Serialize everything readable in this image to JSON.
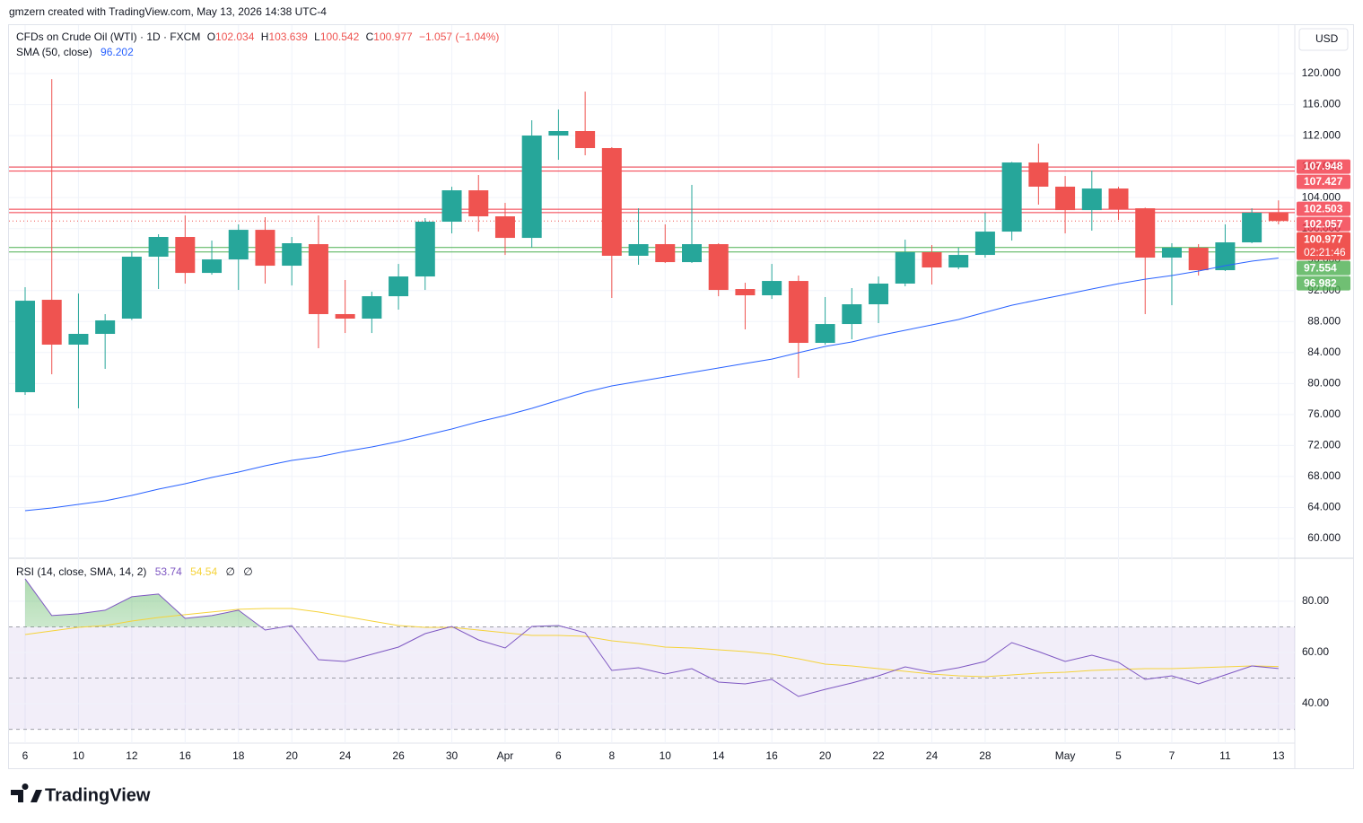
{
  "header": "gmzern created with TradingView.com, May 13, 2026 14:38 UTC-4",
  "currency": "USD",
  "brand": "TradingView",
  "chart_data": [
    {
      "type": "candlestick",
      "title": "CFDs on Crude Oil (WTI) · 1D · FXCM",
      "ohlc_labels": [
        "O",
        "H",
        "L",
        "C"
      ],
      "change_label": "−1.057 (−1.04%)",
      "categories": [
        "6",
        null,
        "10",
        null,
        "12",
        null,
        "16",
        null,
        "18",
        null,
        "20",
        null,
        "24",
        null,
        "26",
        null,
        "30",
        null,
        "Apr",
        null,
        "6",
        null,
        "8",
        null,
        "10",
        null,
        "14",
        null,
        "16",
        null,
        "20",
        null,
        "22",
        null,
        "24",
        null,
        "28",
        null,
        null,
        "May",
        null,
        "5",
        null,
        "7",
        null,
        "11",
        null,
        "13"
      ],
      "open": [
        78.88,
        90.81,
        85.02,
        86.41,
        88.38,
        96.37,
        98.92,
        94.28,
        96.02,
        99.84,
        95.21,
        97.99,
        88.96,
        88.38,
        91.27,
        93.82,
        100.89,
        104.94,
        101.58,
        98.8,
        112.01,
        112.59,
        110.39,
        96.49,
        97.99,
        95.67,
        97.99,
        92.2,
        91.39,
        93.24,
        85.25,
        87.68,
        90.23,
        92.9,
        96.95,
        94.98,
        96.6,
        99.61,
        108.53,
        105.41,
        102.39,
        105.17,
        102.62,
        96.25,
        97.53,
        94.63,
        98.22,
        102.034
      ],
      "high": [
        92.43,
        119.3,
        91.62,
        88.96,
        97.07,
        99.27,
        101.7,
        98.45,
        100.54,
        101.47,
        98.92,
        101.7,
        93.36,
        91.85,
        95.44,
        101.35,
        105.4,
        106.91,
        103.32,
        113.98,
        115.37,
        117.68,
        110.5,
        102.62,
        100.54,
        105.64,
        98.1,
        93.01,
        95.44,
        93.94,
        91.16,
        92.32,
        93.82,
        98.57,
        97.88,
        97.53,
        102.05,
        108.6,
        110.96,
        106.79,
        107.49,
        105.4,
        102.7,
        98.11,
        97.99,
        100.54,
        102.62,
        103.639
      ],
      "low": [
        78.53,
        81.2,
        76.8,
        81.89,
        88.2,
        92.2,
        92.9,
        94.05,
        92.08,
        92.9,
        92.66,
        84.56,
        86.52,
        86.52,
        89.54,
        92.08,
        99.38,
        99.61,
        96.6,
        97.53,
        108.88,
        109.46,
        91.04,
        95.33,
        95.56,
        95.56,
        91.27,
        86.99,
        90.92,
        80.73,
        85.02,
        85.71,
        87.8,
        92.55,
        92.78,
        94.75,
        96.25,
        98.45,
        103.09,
        99.38,
        99.73,
        101.12,
        88.96,
        90.11,
        93.94,
        94.52,
        98.11,
        100.542
      ],
      "close": [
        90.69,
        85.02,
        86.41,
        88.15,
        96.37,
        98.92,
        94.28,
        96.02,
        99.84,
        95.21,
        98.11,
        88.96,
        88.38,
        91.27,
        93.82,
        100.89,
        104.94,
        101.58,
        98.8,
        112.01,
        112.59,
        110.39,
        96.49,
        97.99,
        95.67,
        97.99,
        92.08,
        91.39,
        93.24,
        85.25,
        87.68,
        90.23,
        92.9,
        96.95,
        94.98,
        96.6,
        99.61,
        108.53,
        105.41,
        102.39,
        105.17,
        102.51,
        96.25,
        97.53,
        94.63,
        98.22,
        102.05,
        100.977
      ],
      "up_color": "#26a69a",
      "down_color": "#ef5350",
      "series": [
        {
          "name": "SMA (50, close)",
          "color": "#2962ff",
          "values": [
            63.59,
            63.94,
            64.4,
            64.86,
            65.56,
            66.37,
            67.06,
            67.87,
            68.57,
            69.38,
            70.08,
            70.54,
            71.23,
            71.81,
            72.51,
            73.32,
            74.13,
            75.06,
            75.87,
            76.79,
            77.84,
            78.88,
            79.69,
            80.27,
            80.85,
            81.43,
            82.01,
            82.59,
            83.16,
            83.98,
            84.79,
            85.37,
            86.18,
            86.87,
            87.57,
            88.26,
            89.19,
            90.11,
            90.81,
            91.5,
            92.2,
            92.89,
            93.47,
            93.94,
            94.52,
            95.21,
            95.79,
            96.202
          ]
        }
      ],
      "levels": [
        {
          "value": 107.948,
          "color": "#f23645"
        },
        {
          "value": 107.427,
          "color": "#f23645"
        },
        {
          "value": 102.503,
          "color": "#f23645"
        },
        {
          "value": 102.057,
          "color": "#f23645"
        },
        {
          "value": 97.554,
          "color": "#4caf50"
        },
        {
          "value": 96.982,
          "color": "#4caf50"
        }
      ],
      "last_price_countdown": "02:21:46",
      "ylim": [
        57.45,
        126.26
      ],
      "yticks": [
        {
          "value": 60,
          "label": "60.000"
        },
        {
          "value": 64,
          "label": "64.000"
        },
        {
          "value": 68,
          "label": "68.000"
        },
        {
          "value": 72,
          "label": "72.000"
        },
        {
          "value": 76,
          "label": "76.000"
        },
        {
          "value": 80,
          "label": "80.000"
        },
        {
          "value": 84,
          "label": "84.000"
        },
        {
          "value": 88,
          "label": "88.000"
        },
        {
          "value": 92,
          "label": "92.000"
        },
        {
          "value": 96,
          "label": "96.000"
        },
        {
          "value": 100,
          "label": "100.000"
        },
        {
          "value": 104,
          "label": "104.000"
        },
        {
          "value": 108,
          "label": "108.000"
        },
        {
          "value": 112,
          "label": "112.000"
        },
        {
          "value": 116,
          "label": "116.000"
        },
        {
          "value": 120,
          "label": "120.000"
        }
      ],
      "grid": true
    },
    {
      "type": "line",
      "title": "RSI (14, close, SMA, 14, 2)",
      "legend_extra": [
        "∅",
        "∅"
      ],
      "series": [
        {
          "color": "#7e57c2",
          "values": [
            88.77,
            74.39,
            75.09,
            76.49,
            81.75,
            82.81,
            73.33,
            74.39,
            76.49,
            68.77,
            70.53,
            57.19,
            56.49,
            59.3,
            62.11,
            67.37,
            70.18,
            64.91,
            61.75,
            70.18,
            70.53,
            67.72,
            52.98,
            54.04,
            51.58,
            53.68,
            48.42,
            47.72,
            49.47,
            42.81,
            45.61,
            48.07,
            50.88,
            54.39,
            52.28,
            54.04,
            56.49,
            63.86,
            60.35,
            56.49,
            58.95,
            56.14,
            49.47,
            50.88,
            47.72,
            51.23,
            54.74,
            53.74
          ]
        },
        {
          "color": "#f5d33a",
          "values": [
            67.02,
            68.42,
            69.82,
            70.53,
            72.28,
            73.68,
            74.74,
            75.79,
            76.84,
            77.19,
            77.19,
            75.79,
            74.04,
            72.28,
            70.53,
            69.82,
            69.82,
            68.77,
            67.72,
            66.67,
            66.67,
            66.32,
            64.56,
            63.51,
            62.11,
            61.75,
            61.05,
            60.35,
            59.3,
            57.54,
            55.44,
            54.74,
            53.68,
            52.63,
            51.58,
            50.88,
            50.53,
            51.23,
            51.93,
            52.28,
            52.98,
            53.33,
            53.68,
            53.68,
            54.04,
            54.39,
            54.74,
            54.54
          ]
        }
      ],
      "bands": [
        70,
        50,
        30
      ],
      "band_color": "#7e57c2",
      "overbought_color": "#4caf50",
      "ylim": [
        24.6,
        96.8
      ],
      "yticks": [
        {
          "value": 40,
          "label": "40.00"
        },
        {
          "value": 60,
          "label": "60.00"
        },
        {
          "value": 80,
          "label": "80.00"
        }
      ],
      "grid": true
    }
  ]
}
